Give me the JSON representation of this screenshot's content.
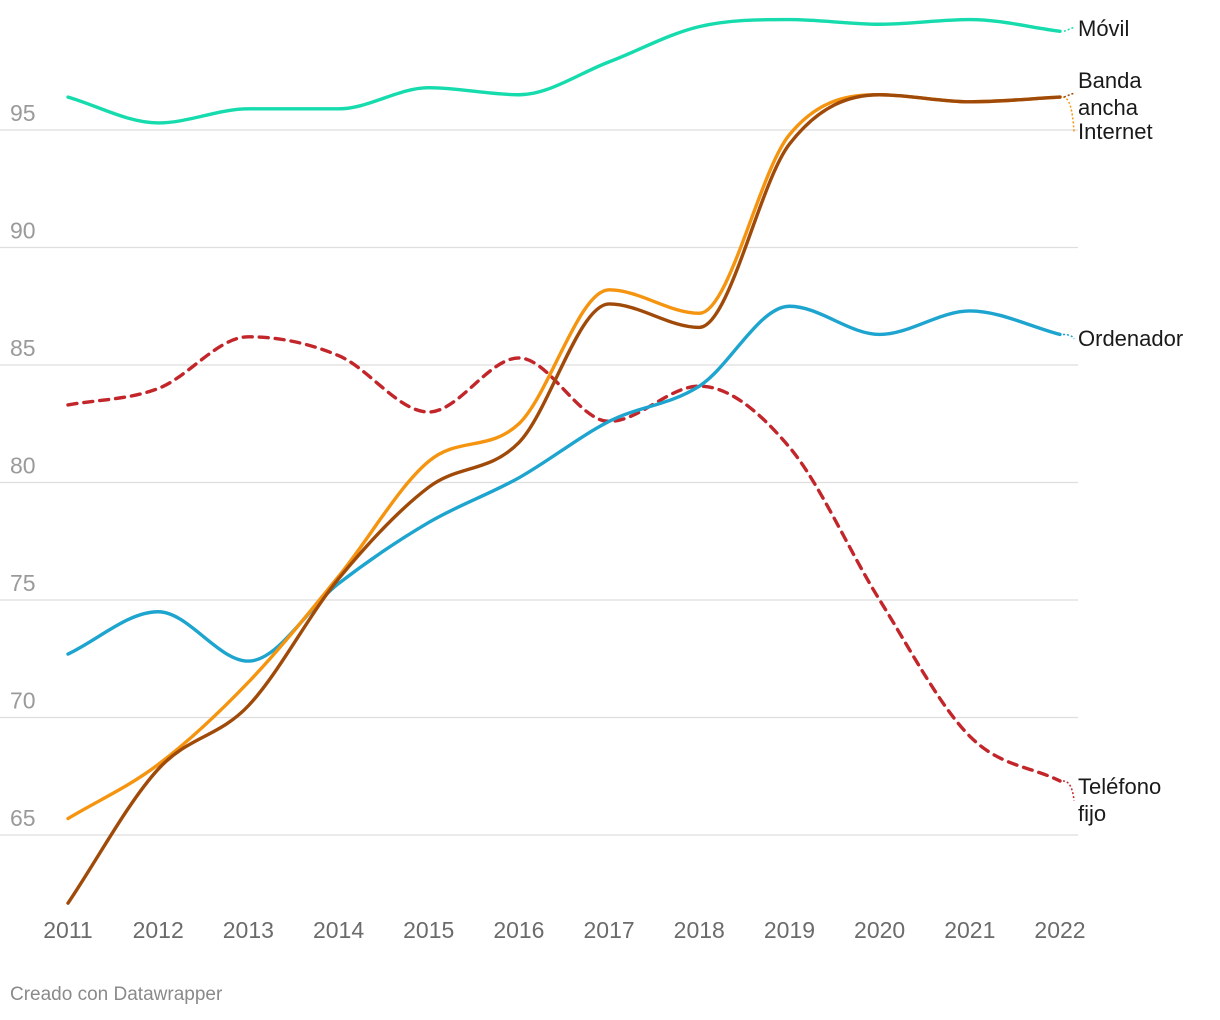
{
  "chart_data": {
    "type": "line",
    "title": "",
    "xlabel": "",
    "ylabel": "",
    "x": [
      "2011",
      "2012",
      "2013",
      "2014",
      "2015",
      "2016",
      "2017",
      "2018",
      "2019",
      "2020",
      "2021",
      "2022"
    ],
    "ylim": [
      62,
      99
    ],
    "yticks": [
      65,
      70,
      75,
      80,
      85,
      90,
      95
    ],
    "grid": true,
    "series": [
      {
        "name": "Móvil",
        "label_lines": [
          "Móvil"
        ],
        "color": "#15dbad",
        "dashed": false,
        "values": [
          96.4,
          95.3,
          95.9,
          95.9,
          96.8,
          96.5,
          97.9,
          99.4,
          99.7,
          99.5,
          99.7,
          99.2
        ]
      },
      {
        "name": "Internet",
        "label_lines": [
          "Internet"
        ],
        "color": "#f5940f",
        "dashed": false,
        "values": [
          65.7,
          68.0,
          71.5,
          76.0,
          80.9,
          82.5,
          88.2,
          87.2,
          94.8,
          96.5,
          96.2,
          96.4
        ]
      },
      {
        "name": "Banda ancha",
        "label_lines": [
          "Banda",
          "ancha"
        ],
        "color": "#a04a09",
        "dashed": false,
        "values": [
          62.1,
          67.8,
          70.5,
          75.9,
          79.8,
          81.7,
          87.6,
          86.6,
          94.4,
          96.5,
          96.2,
          96.4
        ]
      },
      {
        "name": "Ordenador",
        "label_lines": [
          "Ordenador"
        ],
        "color": "#1da4cf",
        "dashed": false,
        "values": [
          72.7,
          74.5,
          72.4,
          75.7,
          78.3,
          80.2,
          82.6,
          84.1,
          87.5,
          86.3,
          87.3,
          86.3
        ]
      },
      {
        "name": "Teléfono fijo",
        "label_lines": [
          "Teléfono",
          "fijo"
        ],
        "color": "#c2262b",
        "dashed": true,
        "values": [
          83.3,
          84.0,
          86.2,
          85.4,
          83.0,
          85.3,
          82.6,
          84.1,
          81.5,
          75.0,
          69.2,
          67.3
        ]
      }
    ]
  },
  "footer": {
    "credit": "Creado con Datawrapper"
  }
}
